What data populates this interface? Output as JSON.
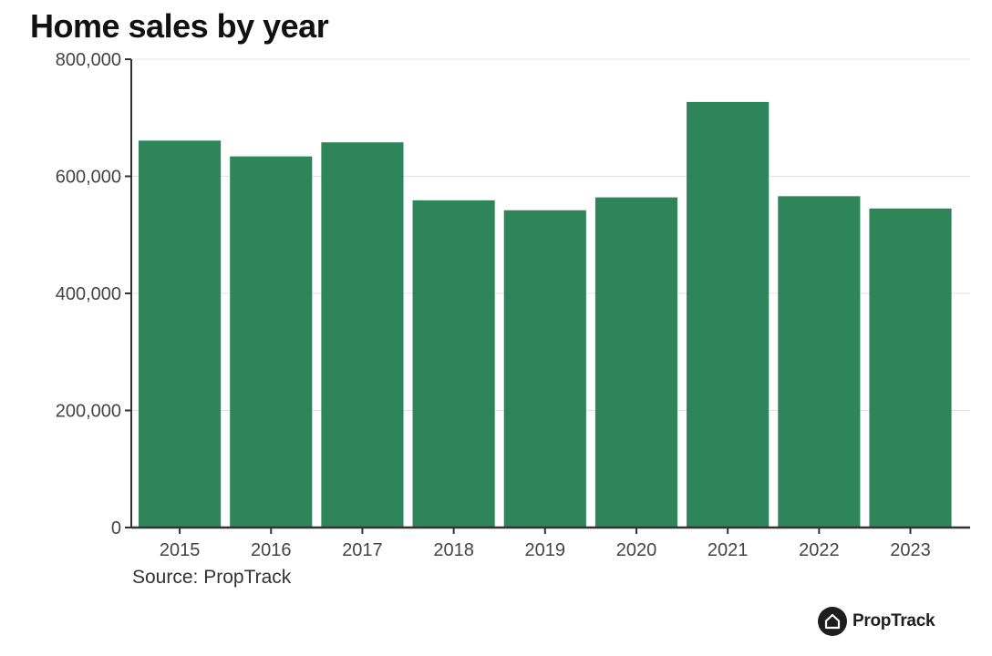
{
  "chart_data": {
    "type": "bar",
    "title": "Home sales by year",
    "xlabel": "",
    "ylabel": "",
    "categories": [
      "2015",
      "2016",
      "2017",
      "2018",
      "2019",
      "2020",
      "2021",
      "2022",
      "2023"
    ],
    "values": [
      661000,
      634000,
      658000,
      559000,
      542000,
      564000,
      727000,
      566000,
      545000
    ],
    "ylim": [
      0,
      800000
    ],
    "yticks": [
      0,
      200000,
      400000,
      600000,
      800000
    ],
    "ytick_labels": [
      "0",
      "200,000",
      "400,000",
      "600,000",
      "800,000"
    ],
    "grid": true,
    "legend": "none",
    "source": "Source: PropTrack"
  },
  "colors": {
    "bar": "#2e855a",
    "axis": "#333333",
    "grid": "#e2e2e2"
  },
  "brand": {
    "name": "PropTrack",
    "icon": "house-icon"
  }
}
